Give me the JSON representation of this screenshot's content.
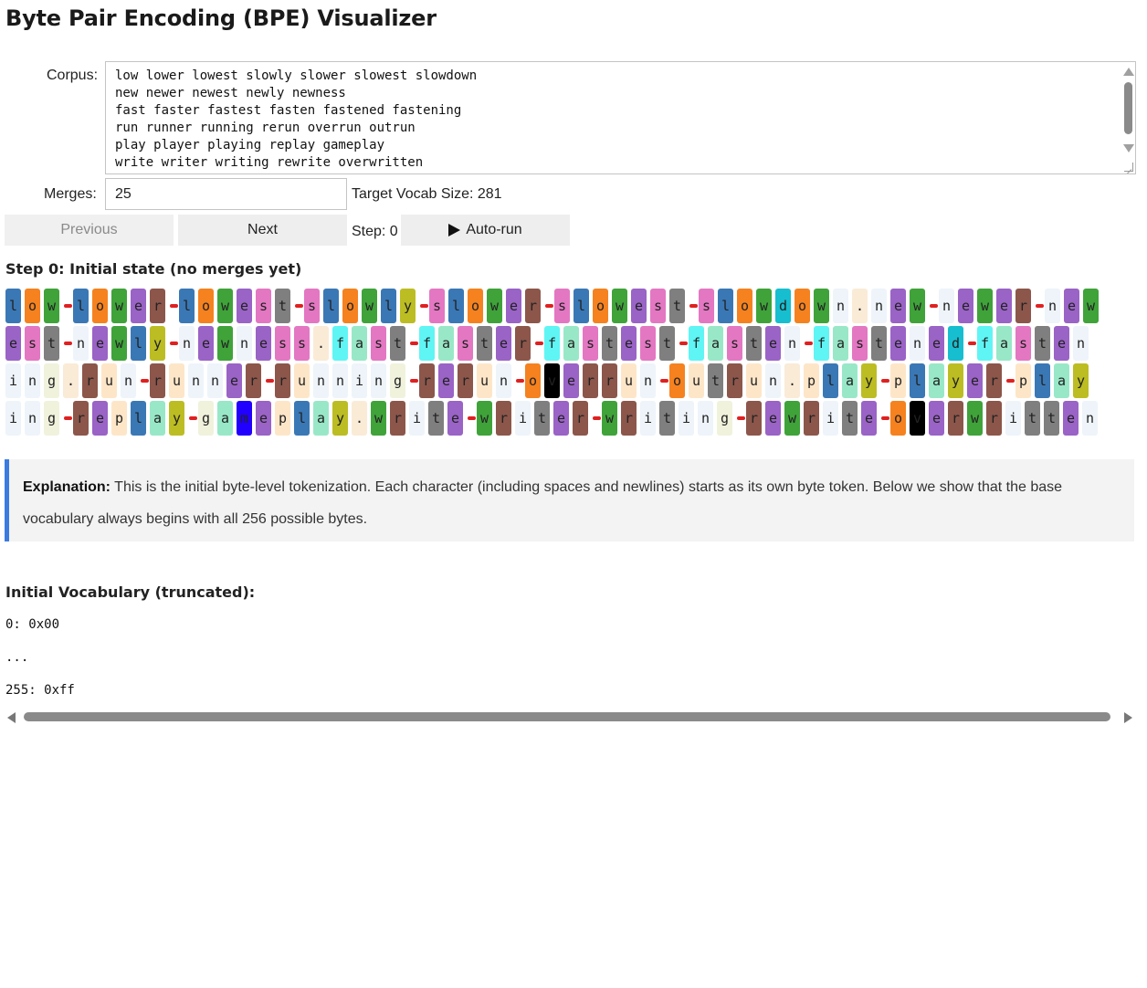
{
  "title": "Byte Pair Encoding (BPE) Visualizer",
  "corpus": {
    "label": "Corpus:",
    "lines": [
      "low lower lowest slowly slower slowest slowdown",
      "new newer newest newly newness",
      "fast faster fastest fasten fastened fastening",
      "run runner running rerun overrun outrun",
      "play player playing replay gameplay",
      "write writer writing rewrite overwritten"
    ]
  },
  "merges": {
    "label": "Merges:",
    "value": "25"
  },
  "target_vocab": "Target Vocab Size: 281",
  "controls": {
    "previous_label": "Previous",
    "next_label": "Next",
    "step_label": "Step: 0",
    "autorun_label": "Auto-run"
  },
  "step_heading": "Step 0: Initial state (no merges yet)",
  "token_rows": [
    [
      [
        "l",
        "#3a78b5"
      ],
      [
        "o",
        "#f5821f"
      ],
      [
        "w",
        "#3fa33a"
      ],
      "_",
      [
        "l",
        "#3a78b5"
      ],
      [
        "o",
        "#f5821f"
      ],
      [
        "w",
        "#3fa33a"
      ],
      [
        "e",
        "#9a63c6"
      ],
      [
        "r",
        "#8c564b"
      ],
      "_",
      [
        "l",
        "#3a78b5"
      ],
      [
        "o",
        "#f5821f"
      ],
      [
        "w",
        "#3fa33a"
      ],
      [
        "e",
        "#9a63c6"
      ],
      [
        "s",
        "#e377c2"
      ],
      [
        "t",
        "#7f7f7f"
      ],
      "_",
      [
        "s",
        "#e377c2"
      ],
      [
        "l",
        "#3a78b5"
      ],
      [
        "o",
        "#f5821f"
      ],
      [
        "w",
        "#3fa33a"
      ],
      [
        "l",
        "#3a78b5"
      ],
      [
        "y",
        "#bcbd22"
      ],
      "_",
      [
        "s",
        "#e377c2"
      ],
      [
        "l",
        "#3a78b5"
      ],
      [
        "o",
        "#f5821f"
      ],
      [
        "w",
        "#3fa33a"
      ],
      [
        "e",
        "#9a63c6"
      ],
      [
        "r",
        "#8c564b"
      ],
      "_",
      [
        "s",
        "#e377c2"
      ],
      [
        "l",
        "#3a78b5"
      ],
      [
        "o",
        "#f5821f"
      ],
      [
        "w",
        "#3fa33a"
      ],
      [
        "e",
        "#9a63c6"
      ],
      [
        "s",
        "#e377c2"
      ],
      [
        "t",
        "#7f7f7f"
      ],
      "_",
      [
        "s",
        "#e377c2"
      ],
      [
        "l",
        "#3a78b5"
      ],
      [
        "o",
        "#f5821f"
      ],
      [
        "w",
        "#3fa33a"
      ],
      [
        "d",
        "#17becf"
      ],
      [
        "o",
        "#f5821f"
      ],
      [
        "w",
        "#3fa33a"
      ],
      [
        "n",
        "#eef4fa"
      ],
      [
        "\n",
        "#faebd7"
      ],
      [
        "n",
        "#eef4fa"
      ],
      [
        "e",
        "#9a63c6"
      ],
      [
        "w",
        "#3fa33a"
      ],
      "_",
      [
        "n",
        "#eef4fa"
      ],
      [
        "e",
        "#9a63c6"
      ],
      [
        "w",
        "#3fa33a"
      ],
      [
        "e",
        "#9a63c6"
      ],
      [
        "r",
        "#8c564b"
      ],
      "_",
      [
        "n",
        "#eef4fa"
      ],
      [
        "e",
        "#9a63c6"
      ],
      [
        "w",
        "#3fa33a"
      ]
    ],
    [
      [
        "e",
        "#9a63c6"
      ],
      [
        "s",
        "#e377c2"
      ],
      [
        "t",
        "#7f7f7f"
      ],
      "_",
      [
        "n",
        "#eef4fa"
      ],
      [
        "e",
        "#9a63c6"
      ],
      [
        "w",
        "#3fa33a"
      ],
      [
        "l",
        "#3a78b5"
      ],
      [
        "y",
        "#bcbd22"
      ],
      "_",
      [
        "n",
        "#eef4fa"
      ],
      [
        "e",
        "#9a63c6"
      ],
      [
        "w",
        "#3fa33a"
      ],
      [
        "n",
        "#eef4fa"
      ],
      [
        "e",
        "#9a63c6"
      ],
      [
        "s",
        "#e377c2"
      ],
      [
        "s",
        "#e377c2"
      ],
      [
        "\n",
        "#faebd7"
      ],
      [
        "f",
        "#5ff5f5"
      ],
      [
        "a",
        "#98e8c8"
      ],
      [
        "s",
        "#e377c2"
      ],
      [
        "t",
        "#7f7f7f"
      ],
      "_",
      [
        "f",
        "#5ff5f5"
      ],
      [
        "a",
        "#98e8c8"
      ],
      [
        "s",
        "#e377c2"
      ],
      [
        "t",
        "#7f7f7f"
      ],
      [
        "e",
        "#9a63c6"
      ],
      [
        "r",
        "#8c564b"
      ],
      "_",
      [
        "f",
        "#5ff5f5"
      ],
      [
        "a",
        "#98e8c8"
      ],
      [
        "s",
        "#e377c2"
      ],
      [
        "t",
        "#7f7f7f"
      ],
      [
        "e",
        "#9a63c6"
      ],
      [
        "s",
        "#e377c2"
      ],
      [
        "t",
        "#7f7f7f"
      ],
      "_",
      [
        "f",
        "#5ff5f5"
      ],
      [
        "a",
        "#98e8c8"
      ],
      [
        "s",
        "#e377c2"
      ],
      [
        "t",
        "#7f7f7f"
      ],
      [
        "e",
        "#9a63c6"
      ],
      [
        "n",
        "#eef4fa"
      ],
      "_",
      [
        "f",
        "#5ff5f5"
      ],
      [
        "a",
        "#98e8c8"
      ],
      [
        "s",
        "#e377c2"
      ],
      [
        "t",
        "#7f7f7f"
      ],
      [
        "e",
        "#9a63c6"
      ],
      [
        "n",
        "#eef4fa"
      ],
      [
        "e",
        "#9a63c6"
      ],
      [
        "d",
        "#17becf"
      ],
      "_",
      [
        "f",
        "#5ff5f5"
      ],
      [
        "a",
        "#98e8c8"
      ],
      [
        "s",
        "#e377c2"
      ],
      [
        "t",
        "#7f7f7f"
      ],
      [
        "e",
        "#9a63c6"
      ],
      [
        "n",
        "#eef4fa"
      ]
    ],
    [
      [
        "i",
        "#eef4fa"
      ],
      [
        "n",
        "#eef4fa"
      ],
      [
        "g",
        "#f0f2dc"
      ],
      [
        "\n",
        "#faebd7"
      ],
      [
        "r",
        "#8c564b"
      ],
      [
        "u",
        "#fde6c8"
      ],
      [
        "n",
        "#eef4fa"
      ],
      "_",
      [
        "r",
        "#8c564b"
      ],
      [
        "u",
        "#fde6c8"
      ],
      [
        "n",
        "#eef4fa"
      ],
      [
        "n",
        "#eef4fa"
      ],
      [
        "e",
        "#9a63c6"
      ],
      [
        "r",
        "#8c564b"
      ],
      "_",
      [
        "r",
        "#8c564b"
      ],
      [
        "u",
        "#fde6c8"
      ],
      [
        "n",
        "#eef4fa"
      ],
      [
        "n",
        "#eef4fa"
      ],
      [
        "i",
        "#eef4fa"
      ],
      [
        "n",
        "#eef4fa"
      ],
      [
        "g",
        "#f0f2dc"
      ],
      "_",
      [
        "r",
        "#8c564b"
      ],
      [
        "e",
        "#9a63c6"
      ],
      [
        "r",
        "#8c564b"
      ],
      [
        "u",
        "#fde6c8"
      ],
      [
        "n",
        "#eef4fa"
      ],
      "_",
      [
        "o",
        "#f5821f"
      ],
      [
        "v",
        "#000000"
      ],
      [
        "e",
        "#9a63c6"
      ],
      [
        "r",
        "#8c564b"
      ],
      [
        "r",
        "#8c564b"
      ],
      [
        "u",
        "#fde6c8"
      ],
      [
        "n",
        "#eef4fa"
      ],
      "_",
      [
        "o",
        "#f5821f"
      ],
      [
        "u",
        "#fde6c8"
      ],
      [
        "t",
        "#7f7f7f"
      ],
      [
        "r",
        "#8c564b"
      ],
      [
        "u",
        "#fde6c8"
      ],
      [
        "n",
        "#eef4fa"
      ],
      [
        "\n",
        "#faebd7"
      ],
      [
        "p",
        "#fde6c8"
      ],
      [
        "l",
        "#3a78b5"
      ],
      [
        "a",
        "#98e8c8"
      ],
      [
        "y",
        "#bcbd22"
      ],
      "_",
      [
        "p",
        "#fde6c8"
      ],
      [
        "l",
        "#3a78b5"
      ],
      [
        "a",
        "#98e8c8"
      ],
      [
        "y",
        "#bcbd22"
      ],
      [
        "e",
        "#9a63c6"
      ],
      [
        "r",
        "#8c564b"
      ],
      "_",
      [
        "p",
        "#fde6c8"
      ],
      [
        "l",
        "#3a78b5"
      ],
      [
        "a",
        "#98e8c8"
      ],
      [
        "y",
        "#bcbd22"
      ]
    ],
    [
      [
        "i",
        "#eef4fa"
      ],
      [
        "n",
        "#eef4fa"
      ],
      [
        "g",
        "#f0f2dc"
      ],
      "_",
      [
        "r",
        "#8c564b"
      ],
      [
        "e",
        "#9a63c6"
      ],
      [
        "p",
        "#fde6c8"
      ],
      [
        "l",
        "#3a78b5"
      ],
      [
        "a",
        "#98e8c8"
      ],
      [
        "y",
        "#bcbd22"
      ],
      "_",
      [
        "g",
        "#f0f2dc"
      ],
      [
        "a",
        "#98e8c8"
      ],
      [
        "m",
        "#2200ff"
      ],
      [
        "e",
        "#9a63c6"
      ],
      [
        "p",
        "#fde6c8"
      ],
      [
        "l",
        "#3a78b5"
      ],
      [
        "a",
        "#98e8c8"
      ],
      [
        "y",
        "#bcbd22"
      ],
      [
        "\n",
        "#faebd7"
      ],
      [
        "w",
        "#3fa33a"
      ],
      [
        "r",
        "#8c564b"
      ],
      [
        "i",
        "#eef4fa"
      ],
      [
        "t",
        "#7f7f7f"
      ],
      [
        "e",
        "#9a63c6"
      ],
      "_",
      [
        "w",
        "#3fa33a"
      ],
      [
        "r",
        "#8c564b"
      ],
      [
        "i",
        "#eef4fa"
      ],
      [
        "t",
        "#7f7f7f"
      ],
      [
        "e",
        "#9a63c6"
      ],
      [
        "r",
        "#8c564b"
      ],
      "_",
      [
        "w",
        "#3fa33a"
      ],
      [
        "r",
        "#8c564b"
      ],
      [
        "i",
        "#eef4fa"
      ],
      [
        "t",
        "#7f7f7f"
      ],
      [
        "i",
        "#eef4fa"
      ],
      [
        "n",
        "#eef4fa"
      ],
      [
        "g",
        "#f0f2dc"
      ],
      "_",
      [
        "r",
        "#8c564b"
      ],
      [
        "e",
        "#9a63c6"
      ],
      [
        "w",
        "#3fa33a"
      ],
      [
        "r",
        "#8c564b"
      ],
      [
        "i",
        "#eef4fa"
      ],
      [
        "t",
        "#7f7f7f"
      ],
      [
        "e",
        "#9a63c6"
      ],
      "_",
      [
        "o",
        "#f5821f"
      ],
      [
        "v",
        "#000000"
      ],
      [
        "e",
        "#9a63c6"
      ],
      [
        "r",
        "#8c564b"
      ],
      [
        "w",
        "#3fa33a"
      ],
      [
        "r",
        "#8c564b"
      ],
      [
        "i",
        "#eef4fa"
      ],
      [
        "t",
        "#7f7f7f"
      ],
      [
        "t",
        "#7f7f7f"
      ],
      [
        "e",
        "#9a63c6"
      ],
      [
        "n",
        "#eef4fa"
      ]
    ]
  ],
  "explanation": {
    "bold": "Explanation:",
    "text": " This is the initial byte-level tokenization. Each character (including spaces and newlines) starts as its own byte token. Below we show that the base vocabulary always begins with all 256 possible bytes."
  },
  "vocab": {
    "title": "Initial Vocabulary (truncated):",
    "first": "0: 0x00",
    "ellipsis": "...",
    "last": "255: 0xff"
  },
  "colors": {
    "accent_border": "#3a7be0",
    "space_separator": "#e02020",
    "dark_token_text": "#222222"
  }
}
